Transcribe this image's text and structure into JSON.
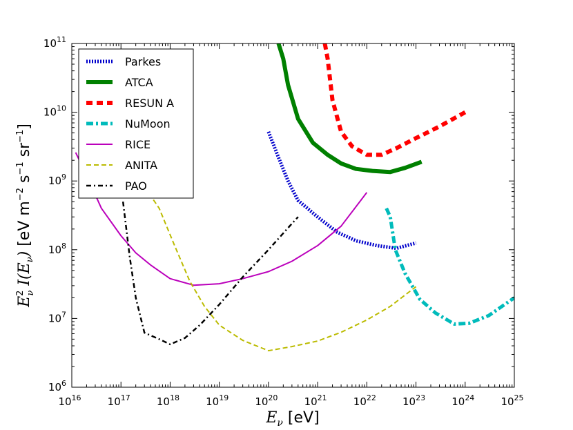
{
  "chart_data": {
    "type": "line",
    "title": "",
    "xscale": "log",
    "yscale": "log",
    "xlim": [
      1e+16,
      1e+25
    ],
    "ylim": [
      1000000.0,
      100000000000.0
    ],
    "xticks": [
      {
        "base": "10",
        "exp": "16"
      },
      {
        "base": "10",
        "exp": "17"
      },
      {
        "base": "10",
        "exp": "18"
      },
      {
        "base": "10",
        "exp": "19"
      },
      {
        "base": "10",
        "exp": "20"
      },
      {
        "base": "10",
        "exp": "21"
      },
      {
        "base": "10",
        "exp": "22"
      },
      {
        "base": "10",
        "exp": "23"
      },
      {
        "base": "10",
        "exp": "24"
      },
      {
        "base": "10",
        "exp": "25"
      }
    ],
    "yticks": [
      {
        "base": "10",
        "exp": "6"
      },
      {
        "base": "10",
        "exp": "7"
      },
      {
        "base": "10",
        "exp": "8"
      },
      {
        "base": "10",
        "exp": "9"
      },
      {
        "base": "10",
        "exp": "10"
      },
      {
        "base": "10",
        "exp": "11"
      }
    ],
    "xlabel": {
      "sym": "E",
      "sub": "ν",
      "unit": " [eV]"
    },
    "ylabel": {
      "sym": "E",
      "sup": "2",
      "sub": "ν",
      "fn": " I(E",
      "fnsub": "ν",
      "close": ")",
      "unit": " [eV m",
      "u1": "−2",
      "u2": " s",
      "u3": "−1",
      "u4": " sr",
      "u5": "−1",
      "u6": "]"
    },
    "legend_position": "top-left",
    "series": [
      {
        "name": "Parkes",
        "color": "#0000cc",
        "style": "dotted-thick",
        "points": [
          [
            1e+20,
            5200000000.0
          ],
          [
            1.6e+20,
            2200000000.0
          ],
          [
            2.5e+20,
            1000000000.0
          ],
          [
            4e+20,
            520000000.0
          ],
          [
            1e+21,
            300000000.0
          ],
          [
            2.5e+21,
            180000000.0
          ],
          [
            6e+21,
            135000000.0
          ],
          [
            1.6e+22,
            115000000.0
          ],
          [
            4e+22,
            105000000.0
          ],
          [
            1e+23,
            125000000.0
          ]
        ]
      },
      {
        "name": "ATCA",
        "color": "#008000",
        "style": "solid-thick",
        "points": [
          [
            1.6e+20,
            100000000000.0
          ],
          [
            2e+20,
            60000000000.0
          ],
          [
            2.5e+20,
            25000000000.0
          ],
          [
            4e+20,
            8000000000.0
          ],
          [
            8e+20,
            3600000000.0
          ],
          [
            1.6e+21,
            2400000000.0
          ],
          [
            3e+21,
            1800000000.0
          ],
          [
            6e+21,
            1500000000.0
          ],
          [
            1.3e+22,
            1400000000.0
          ],
          [
            3e+22,
            1350000000.0
          ],
          [
            6e+22,
            1550000000.0
          ],
          [
            1.3e+23,
            1900000000.0
          ]
        ]
      },
      {
        "name": "RESUN A",
        "color": "#ff0000",
        "style": "dashed-thick",
        "points": [
          [
            1.4e+21,
            100000000000.0
          ],
          [
            1.6e+21,
            60000000000.0
          ],
          [
            2e+21,
            15000000000.0
          ],
          [
            3e+21,
            5200000000.0
          ],
          [
            5e+21,
            3200000000.0
          ],
          [
            1e+22,
            2400000000.0
          ],
          [
            2e+22,
            2400000000.0
          ],
          [
            4e+22,
            3000000000.0
          ],
          [
            1e+23,
            4200000000.0
          ],
          [
            3e+23,
            6200000000.0
          ],
          [
            1e+24,
            10000000000.0
          ]
        ]
      },
      {
        "name": "NuMoon",
        "color": "#00bbbb",
        "style": "dashdot-thick",
        "points": [
          [
            2.5e+22,
            400000000.0
          ],
          [
            3e+22,
            300000000.0
          ],
          [
            3.8e+22,
            100000000.0
          ],
          [
            6e+22,
            45000000.0
          ],
          [
            1.2e+23,
            19000000.0
          ],
          [
            2.5e+23,
            12000000.0
          ],
          [
            6e+23,
            8300000.0
          ],
          [
            1.2e+24,
            8500000.0
          ],
          [
            3e+24,
            11000000.0
          ],
          [
            1e+25,
            20000000.0
          ]
        ]
      },
      {
        "name": "RICE",
        "color": "#bb00bb",
        "style": "solid",
        "points": [
          [
            1.2e+16,
            2600000000.0
          ],
          [
            2e+16,
            1200000000.0
          ],
          [
            4e+16,
            400000000.0
          ],
          [
            1e+17,
            160000000.0
          ],
          [
            2e+17,
            90000000.0
          ],
          [
            4e+17,
            60000000.0
          ],
          [
            1e+18,
            38000000.0
          ],
          [
            3e+18,
            30500000.0
          ],
          [
            1e+19,
            32000000.0
          ],
          [
            3e+19,
            38000000.0
          ],
          [
            1e+20,
            48000000.0
          ],
          [
            3e+20,
            68000000.0
          ],
          [
            1e+21,
            115000000.0
          ],
          [
            3e+21,
            220000000.0
          ],
          [
            1e+22,
            680000000.0
          ]
        ]
      },
      {
        "name": "ANITA",
        "color": "#bbbb00",
        "style": "dashed",
        "points": [
          [
            2.5e+17,
            1000000000.0
          ],
          [
            6e+17,
            400000000.0
          ],
          [
            1.2e+18,
            120000000.0
          ],
          [
            2.5e+18,
            35000000.0
          ],
          [
            5e+18,
            15000000.0
          ],
          [
            1e+19,
            8000000.0
          ],
          [
            3e+19,
            4800000.0
          ],
          [
            1e+20,
            3400000.0
          ],
          [
            3e+20,
            3900000.0
          ],
          [
            1e+21,
            4700000.0
          ],
          [
            3e+21,
            6300000.0
          ],
          [
            1e+22,
            9500000.0
          ],
          [
            3e+22,
            15000000.0
          ],
          [
            1e+23,
            29000000.0
          ]
        ]
      },
      {
        "name": "PAO",
        "color": "#000000",
        "style": "dashdot",
        "points": [
          [
            1.1e+17,
            500000000.0
          ],
          [
            1.5e+17,
            80000000.0
          ],
          [
            2e+17,
            20000000.0
          ],
          [
            3e+17,
            6200000.0
          ],
          [
            6e+17,
            5000000.0
          ],
          [
            1e+18,
            4200000.0
          ],
          [
            2e+18,
            5200000.0
          ],
          [
            4e+18,
            8000000.0
          ],
          [
            1e+19,
            16000000.0
          ],
          [
            3e+19,
            40000000.0
          ],
          [
            1e+20,
            100000000.0
          ],
          [
            3e+20,
            240000000.0
          ],
          [
            4e+20,
            300000000.0
          ]
        ]
      }
    ]
  },
  "colors": {
    "axis": "#000000",
    "background": "#ffffff"
  }
}
